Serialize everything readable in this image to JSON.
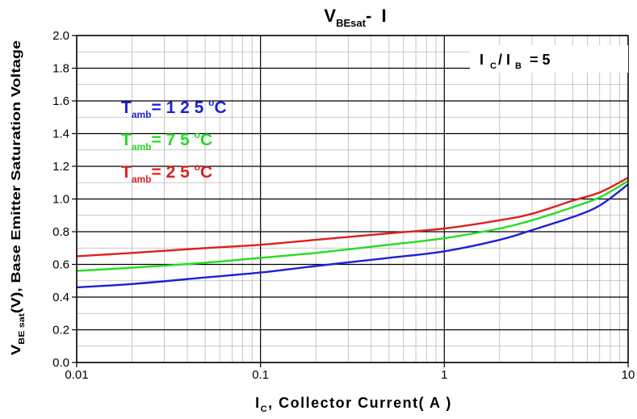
{
  "chart_data": {
    "type": "line",
    "title": {
      "main": "V",
      "sub": "BEsat",
      "rest": "-  I"
    },
    "xlabel": {
      "main": "I",
      "sub": "C",
      "rest": ", Collector Current( A )"
    },
    "ylabel": {
      "main": "V",
      "sub": "BE sat",
      "rest": "(V), Base Emitter Saturation Voltage"
    },
    "x_scale": "log",
    "xlim": [
      0.01,
      10
    ],
    "ylim": [
      0.0,
      2.0
    ],
    "x_ticks": [
      0.01,
      0.1,
      1,
      10
    ],
    "x_tick_labels": [
      "0.01",
      "0.1",
      "1",
      "10"
    ],
    "y_ticks": [
      0.0,
      0.2,
      0.4,
      0.6,
      0.8,
      1.0,
      1.2,
      1.4,
      1.6,
      1.8,
      2.0
    ],
    "y_tick_labels": [
      "0.0",
      "0.2",
      "0.4",
      "0.6",
      "0.8",
      "1.0",
      "1.2",
      "1.4",
      "1.6",
      "1.8",
      "2.0"
    ],
    "grid": true,
    "condition": {
      "a": "I",
      "a_sub": "C",
      "sep": "/ I",
      "b_sub": "B",
      "rest": "= 5"
    },
    "series": [
      {
        "name": {
          "main": "T",
          "sub": "amb",
          "rest": "= 1 2 5  ",
          "sup": "o",
          "unit": "C"
        },
        "color": "#1f1fd6",
        "points": [
          [
            0.01,
            0.46
          ],
          [
            0.02,
            0.48
          ],
          [
            0.05,
            0.52
          ],
          [
            0.1,
            0.55
          ],
          [
            0.2,
            0.59
          ],
          [
            0.5,
            0.64
          ],
          [
            1,
            0.68
          ],
          [
            2,
            0.75
          ],
          [
            3,
            0.81
          ],
          [
            5,
            0.89
          ],
          [
            7,
            0.96
          ],
          [
            10,
            1.09
          ]
        ]
      },
      {
        "name": {
          "main": "T",
          "sub": "amb",
          "rest": "=  7 5  ",
          "sup": "o",
          "unit": "C"
        },
        "color": "#22dd22",
        "points": [
          [
            0.01,
            0.56
          ],
          [
            0.02,
            0.58
          ],
          [
            0.05,
            0.61
          ],
          [
            0.1,
            0.64
          ],
          [
            0.2,
            0.67
          ],
          [
            0.5,
            0.72
          ],
          [
            1,
            0.76
          ],
          [
            2,
            0.82
          ],
          [
            3,
            0.87
          ],
          [
            5,
            0.95
          ],
          [
            7,
            1.01
          ],
          [
            10,
            1.11
          ]
        ]
      },
      {
        "name": {
          "main": "T",
          "sub": "amb",
          "rest": "=  2 5  ",
          "sup": "o",
          "unit": "C"
        },
        "color": "#e01f1f",
        "points": [
          [
            0.01,
            0.65
          ],
          [
            0.02,
            0.67
          ],
          [
            0.05,
            0.7
          ],
          [
            0.1,
            0.72
          ],
          [
            0.2,
            0.75
          ],
          [
            0.5,
            0.79
          ],
          [
            1,
            0.82
          ],
          [
            2,
            0.87
          ],
          [
            3,
            0.91
          ],
          [
            5,
            0.99
          ],
          [
            7,
            1.04
          ],
          [
            10,
            1.13
          ]
        ]
      }
    ]
  }
}
